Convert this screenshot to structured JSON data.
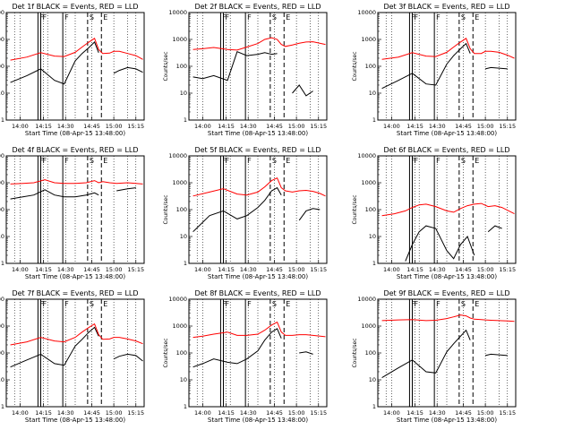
{
  "window": {
    "title": ""
  },
  "x_ticks": [
    "14:00",
    "14:15",
    "14:30",
    "14:45",
    "15:00",
    "15:15"
  ],
  "y_ticks": [
    "1",
    "10",
    "100",
    "1000",
    "10000"
  ],
  "ylabel": "Counts/sec",
  "xlabel": "Start Time (08-Apr-15 13:48:00)",
  "colors": {
    "events": "#000000",
    "lld": "#ff0000",
    "axis": "#000000"
  },
  "chart_data": [
    {
      "type": "line",
      "title": "Det 1f BLACK = Events, RED = LLD",
      "marker_labels": [
        "F",
        "F",
        "F",
        "S",
        "E"
      ],
      "x": [
        0.03,
        0.15,
        0.25,
        0.35,
        0.42,
        0.5,
        0.55,
        0.6,
        0.64,
        0.67,
        0.7,
        0.75,
        0.78,
        0.82,
        0.88,
        0.94,
        0.99
      ],
      "series": [
        {
          "name": "Events",
          "values": [
            25,
            45,
            80,
            30,
            22,
            160,
            300,
            500,
            800,
            320,
            null,
            null,
            55,
            70,
            90,
            80,
            60
          ]
        },
        {
          "name": "LLD",
          "values": [
            170,
            220,
            320,
            240,
            230,
            330,
            520,
            800,
            1100,
            420,
            300,
            310,
            360,
            360,
            300,
            250,
            180
          ]
        }
      ],
      "ylim": [
        1,
        10000
      ]
    },
    {
      "type": "line",
      "title": "Det 2f BLACK = Events, RED = LLD",
      "marker_labels": [
        "F",
        "F",
        "F",
        "S",
        "E"
      ],
      "x": [
        0.03,
        0.1,
        0.18,
        0.28,
        0.35,
        0.42,
        0.5,
        0.55,
        0.6,
        0.64,
        0.67,
        0.7,
        0.75,
        0.8,
        0.85,
        0.9,
        0.99
      ],
      "series": [
        {
          "name": "Events",
          "values": [
            40,
            35,
            45,
            30,
            350,
            250,
            280,
            320,
            280,
            300,
            null,
            null,
            10,
            20,
            8,
            12,
            null
          ]
        },
        {
          "name": "LLD",
          "values": [
            420,
            450,
            500,
            420,
            400,
            520,
            700,
            1000,
            1150,
            1000,
            650,
            550,
            620,
            720,
            800,
            820,
            650
          ]
        }
      ],
      "ylim": [
        1,
        10000
      ]
    },
    {
      "type": "line",
      "title": "Det 3f BLACK = Events, RED = LLD",
      "marker_labels": [
        "F",
        "F",
        "F",
        "S",
        "E"
      ],
      "x": [
        0.03,
        0.15,
        0.25,
        0.35,
        0.42,
        0.5,
        0.55,
        0.6,
        0.64,
        0.67,
        0.7,
        0.75,
        0.78,
        0.82,
        0.88,
        0.94,
        0.99
      ],
      "series": [
        {
          "name": "Events",
          "values": [
            15,
            30,
            55,
            22,
            20,
            120,
            250,
            450,
            700,
            300,
            null,
            null,
            80,
            90,
            85,
            80,
            null
          ]
        },
        {
          "name": "LLD",
          "values": [
            180,
            220,
            320,
            240,
            230,
            330,
            520,
            800,
            1100,
            450,
            300,
            300,
            360,
            360,
            330,
            260,
            200
          ]
        }
      ],
      "ylim": [
        1,
        10000
      ]
    },
    {
      "type": "line",
      "title": "Det 4f BLACK = Events, RED = LLD",
      "marker_labels": [
        "F",
        "F",
        "F",
        "S",
        "E"
      ],
      "x": [
        0.03,
        0.12,
        0.2,
        0.28,
        0.35,
        0.42,
        0.5,
        0.58,
        0.64,
        0.67,
        0.7,
        0.75,
        0.8,
        0.88,
        0.94,
        0.99
      ],
      "series": [
        {
          "name": "Events",
          "values": [
            250,
            300,
            350,
            550,
            350,
            300,
            300,
            350,
            420,
            350,
            null,
            null,
            500,
            600,
            650,
            null
          ]
        },
        {
          "name": "LLD",
          "values": [
            900,
            950,
            1000,
            1300,
            1000,
            950,
            950,
            1000,
            1200,
            1000,
            1100,
            1000,
            950,
            1000,
            950,
            900
          ]
        }
      ],
      "ylim": [
        1,
        10000
      ]
    },
    {
      "type": "line",
      "title": "Det 5f BLACK = Events, RED = LLD",
      "marker_labels": [
        "F",
        "F",
        "F",
        "S",
        "E"
      ],
      "x": [
        0.03,
        0.15,
        0.25,
        0.35,
        0.42,
        0.5,
        0.55,
        0.6,
        0.64,
        0.67,
        0.7,
        0.75,
        0.8,
        0.85,
        0.9,
        0.95,
        0.99
      ],
      "series": [
        {
          "name": "Events",
          "values": [
            15,
            60,
            90,
            45,
            60,
            120,
            220,
            500,
            650,
            350,
            null,
            null,
            40,
            90,
            110,
            100,
            null
          ]
        },
        {
          "name": "LLD",
          "values": [
            320,
            450,
            600,
            380,
            350,
            450,
            700,
            1200,
            1500,
            650,
            500,
            450,
            500,
            520,
            480,
            400,
            320
          ]
        }
      ],
      "ylim": [
        1,
        10000
      ]
    },
    {
      "type": "line",
      "title": "Det 6f BLACK = Events, RED = LLD",
      "marker_labels": [
        "F",
        "F",
        "F",
        "S",
        "E"
      ],
      "x": [
        0.03,
        0.12,
        0.2,
        0.25,
        0.3,
        0.35,
        0.42,
        0.5,
        0.55,
        0.6,
        0.65,
        0.7,
        0.75,
        0.8,
        0.85,
        0.9,
        0.99
      ],
      "series": [
        {
          "name": "Events",
          "values": [
            null,
            null,
            1.2,
            5,
            15,
            25,
            20,
            3,
            1.5,
            5,
            10,
            2,
            null,
            15,
            25,
            20,
            null
          ]
        },
        {
          "name": "LLD",
          "values": [
            60,
            70,
            90,
            120,
            150,
            160,
            130,
            90,
            80,
            110,
            140,
            160,
            170,
            130,
            140,
            120,
            70
          ]
        }
      ],
      "ylim": [
        1,
        10000
      ]
    },
    {
      "type": "line",
      "title": "Det 7f BLACK = Events, RED = LLD",
      "marker_labels": [
        "F",
        "F",
        "F",
        "S",
        "E"
      ],
      "x": [
        0.03,
        0.15,
        0.25,
        0.35,
        0.42,
        0.5,
        0.55,
        0.6,
        0.64,
        0.67,
        0.7,
        0.75,
        0.78,
        0.82,
        0.88,
        0.94,
        0.99
      ],
      "series": [
        {
          "name": "Events",
          "values": [
            30,
            55,
            90,
            40,
            35,
            180,
            320,
            600,
            900,
            420,
            null,
            null,
            60,
            75,
            90,
            80,
            50
          ]
        },
        {
          "name": "LLD",
          "values": [
            200,
            260,
            380,
            280,
            260,
            380,
            600,
            900,
            1200,
            480,
            320,
            330,
            380,
            380,
            330,
            280,
            220
          ]
        }
      ],
      "ylim": [
        1,
        10000
      ]
    },
    {
      "type": "line",
      "title": "Det 8f BLACK = Events, RED = LLD",
      "marker_labels": [
        "F",
        "F",
        "F",
        "S",
        "E"
      ],
      "x": [
        0.03,
        0.1,
        0.18,
        0.28,
        0.35,
        0.42,
        0.5,
        0.55,
        0.6,
        0.64,
        0.67,
        0.7,
        0.75,
        0.8,
        0.85,
        0.9,
        0.99
      ],
      "series": [
        {
          "name": "Events",
          "values": [
            30,
            40,
            60,
            45,
            40,
            60,
            120,
            300,
            600,
            800,
            350,
            null,
            null,
            100,
            110,
            90,
            null
          ]
        },
        {
          "name": "LLD",
          "values": [
            380,
            420,
            500,
            600,
            450,
            450,
            500,
            700,
            1100,
            1400,
            600,
            450,
            450,
            480,
            480,
            450,
            400
          ]
        }
      ],
      "ylim": [
        1,
        10000
      ]
    },
    {
      "type": "line",
      "title": "Det 9f BLACK = Events, RED = LLD",
      "marker_labels": [
        "F",
        "F",
        "F",
        "S",
        "E"
      ],
      "x": [
        0.03,
        0.15,
        0.25,
        0.35,
        0.42,
        0.5,
        0.55,
        0.6,
        0.64,
        0.67,
        0.7,
        0.75,
        0.78,
        0.82,
        0.88,
        0.94,
        0.99
      ],
      "series": [
        {
          "name": "Events",
          "values": [
            12,
            28,
            55,
            20,
            18,
            110,
            220,
            420,
            700,
            300,
            null,
            null,
            80,
            90,
            85,
            80,
            null
          ]
        },
        {
          "name": "LLD",
          "values": [
            1600,
            1700,
            1750,
            1600,
            1650,
            1900,
            2200,
            2600,
            2400,
            2000,
            1800,
            1750,
            1700,
            1650,
            1600,
            1550,
            1500
          ]
        }
      ],
      "ylim": [
        1,
        10000
      ]
    }
  ]
}
